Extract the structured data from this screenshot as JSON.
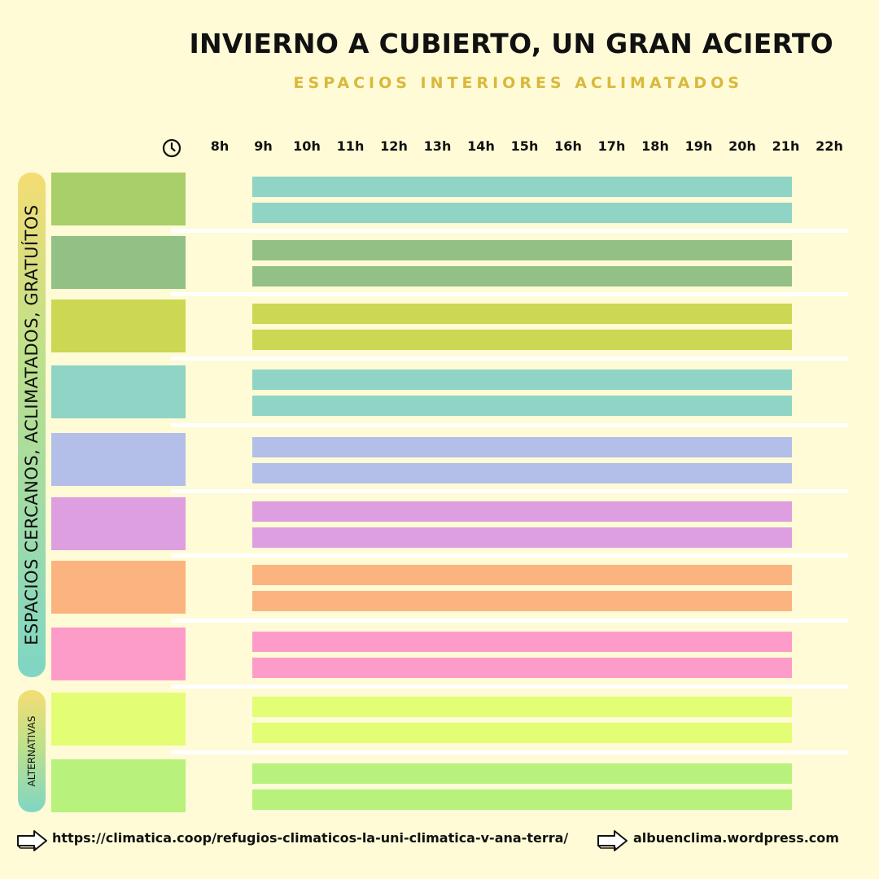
{
  "header": {
    "title": "INVIERNO A CUBIERTO, UN GRAN ACIERTO",
    "subtitle": "ESPACIOS INTERIORES ACLIMATADOS"
  },
  "side_labels": {
    "main": "ESPACIOS  CERCANOS, ACLIMATADOS, GRATUÍTOS",
    "alternatives": "ALTERNATIVAS"
  },
  "clock_icon": "clock-icon",
  "chart_data": {
    "type": "gantt",
    "title": "INVIERNO A CUBIERTO, UN GRAN ACIERTO",
    "subtitle": "ESPACIOS INTERIORES ACLIMATADOS",
    "x_ticks": [
      "8h",
      "9h",
      "10h",
      "11h",
      "12h",
      "13h",
      "14h",
      "15h",
      "16h",
      "17h",
      "18h",
      "19h",
      "20h",
      "21h",
      "22h"
    ],
    "xlim": [
      8,
      22
    ],
    "rows": [
      {
        "group": "main",
        "color": "#a8cf6a",
        "bar_color": "#8fd4c4",
        "bars": [
          [
            9,
            21.4
          ],
          [
            9,
            21.4
          ]
        ]
      },
      {
        "group": "main",
        "color": "#93c084",
        "bar_color": "#93c084",
        "bars": [
          [
            9,
            21.4
          ],
          [
            9,
            21.4
          ]
        ]
      },
      {
        "group": "main",
        "color": "#cbd853",
        "bar_color": "#cbd853",
        "bars": [
          [
            9,
            21.4
          ],
          [
            9,
            21.4
          ]
        ]
      },
      {
        "group": "main",
        "color": "#8fd4c4",
        "bar_color": "#8fd4c4",
        "bars": [
          [
            9,
            21.4
          ],
          [
            9,
            21.4
          ]
        ]
      },
      {
        "group": "main",
        "color": "#b3bee9",
        "bar_color": "#b3bee9",
        "bars": [
          [
            9,
            21.4
          ],
          [
            9,
            21.4
          ]
        ]
      },
      {
        "group": "main",
        "color": "#dd9fe0",
        "bar_color": "#dd9fe0",
        "bars": [
          [
            9,
            21.4
          ],
          [
            9,
            21.4
          ]
        ]
      },
      {
        "group": "main",
        "color": "#fbb47f",
        "bar_color": "#fbb47f",
        "bars": [
          [
            9,
            21.4
          ],
          [
            9,
            21.4
          ]
        ]
      },
      {
        "group": "main",
        "color": "#fd9cc9",
        "bar_color": "#fd9cc9",
        "bars": [
          [
            9,
            21.4
          ],
          [
            9,
            21.4
          ]
        ]
      },
      {
        "group": "alternatives",
        "color": "#e3fd75",
        "bar_color": "#e3fd75",
        "bars": [
          [
            9,
            21.4
          ],
          [
            9,
            21.4
          ]
        ]
      },
      {
        "group": "alternatives",
        "color": "#b8f17b",
        "bar_color": "#b8f17b",
        "bars": [
          [
            9,
            21.4
          ],
          [
            9,
            21.4
          ]
        ]
      }
    ]
  },
  "footer": {
    "link": "https://climatica.coop/refugios-climaticos-la-uni-climatica-v-ana-terra/",
    "site": "albuenclima.wordpress.com"
  }
}
